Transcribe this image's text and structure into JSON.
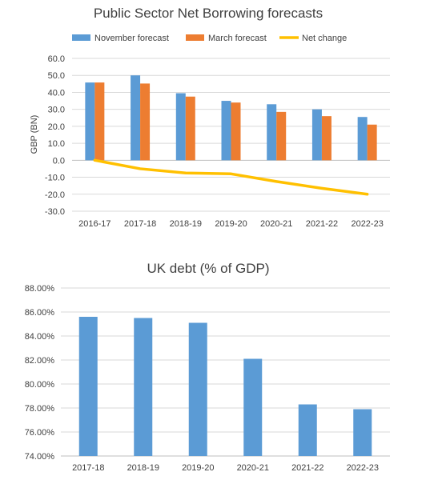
{
  "chart_data": [
    {
      "type": "bar",
      "title": "Public Sector Net Borrowing forecasts",
      "ylabel": "GBP (BN)",
      "xlabel": "",
      "ylim": [
        -30,
        60
      ],
      "yticks": [
        "60.0",
        "50.0",
        "40.0",
        "30.0",
        "20.0",
        "10.0",
        "0.0",
        "-10.0",
        "-20.0",
        "-30.0"
      ],
      "grid": true,
      "legend_position": "top",
      "categories": [
        "2016-17",
        "2017-18",
        "2018-19",
        "2019-20",
        "2020-21",
        "2021-22",
        "2022-23"
      ],
      "series": [
        {
          "name": "November forecast",
          "type": "bar",
          "color": "#5b9bd5",
          "values": [
            45.8,
            50.0,
            39.5,
            35.0,
            33.0,
            30.0,
            25.5
          ]
        },
        {
          "name": "March forecast",
          "type": "bar",
          "color": "#ed7d31",
          "values": [
            45.8,
            45.2,
            37.5,
            34.0,
            28.5,
            26.0,
            21.0
          ]
        },
        {
          "name": "Net change",
          "type": "line",
          "color": "#ffc000",
          "values": [
            0.0,
            -5.0,
            -7.5,
            -8.0,
            -12.5,
            -16.5,
            -20.0
          ]
        }
      ]
    },
    {
      "type": "bar",
      "title": "UK debt (% of GDP)",
      "xlabel": "",
      "ylabel": "",
      "ylim": [
        74,
        88
      ],
      "yticks": [
        "88.00%",
        "86.00%",
        "84.00%",
        "82.00%",
        "80.00%",
        "78.00%",
        "76.00%",
        "74.00%"
      ],
      "grid": true,
      "categories": [
        "2017-18",
        "2018-19",
        "2019-20",
        "2020-21",
        "2021-22",
        "2022-23"
      ],
      "series": [
        {
          "color": "#5b9bd5",
          "values": [
            85.6,
            85.5,
            85.1,
            82.1,
            78.3,
            77.9
          ]
        }
      ]
    }
  ]
}
